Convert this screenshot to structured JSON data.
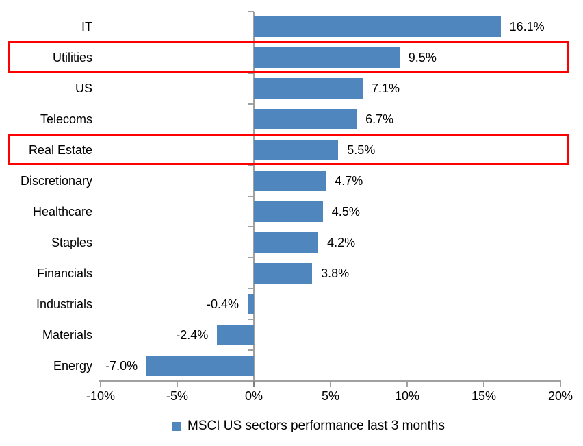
{
  "chart_data": {
    "type": "bar",
    "orientation": "horizontal",
    "title": "",
    "legend_label": "MSCI US sectors performance last 3 months",
    "legend_position": "bottom",
    "grid": false,
    "categories": [
      "IT",
      "Utilities",
      "US",
      "Telecoms",
      "Real Estate",
      "Discretionary",
      "Healthcare",
      "Staples",
      "Financials",
      "Industrials",
      "Materials",
      "Energy"
    ],
    "values": [
      16.1,
      9.5,
      7.1,
      6.7,
      5.5,
      4.7,
      4.5,
      4.2,
      3.8,
      -0.4,
      -2.4,
      -7.0
    ],
    "value_labels": [
      "16.1%",
      "9.5%",
      "7.1%",
      "6.7%",
      "5.5%",
      "4.7%",
      "4.5%",
      "4.2%",
      "3.8%",
      "-0.4%",
      "-2.4%",
      "-7.0%"
    ],
    "highlighted_categories": [
      "Utilities",
      "Real Estate"
    ],
    "x_axis": {
      "range": [
        -10,
        20
      ],
      "ticks": [
        {
          "value": -10,
          "label": "-10%"
        },
        {
          "value": -5,
          "label": "-5%"
        },
        {
          "value": 0,
          "label": "0%"
        },
        {
          "value": 5,
          "label": "5%"
        },
        {
          "value": 10,
          "label": "10%"
        },
        {
          "value": 15,
          "label": "15%"
        },
        {
          "value": 20,
          "label": "20%"
        }
      ]
    },
    "colors": {
      "bar": "#4F86BD",
      "highlight_box": "#FF0000",
      "axis": "#A0A0A0",
      "zero_tick": "#7F7F7F",
      "text": "#000000",
      "background": "#FFFFFF"
    }
  }
}
